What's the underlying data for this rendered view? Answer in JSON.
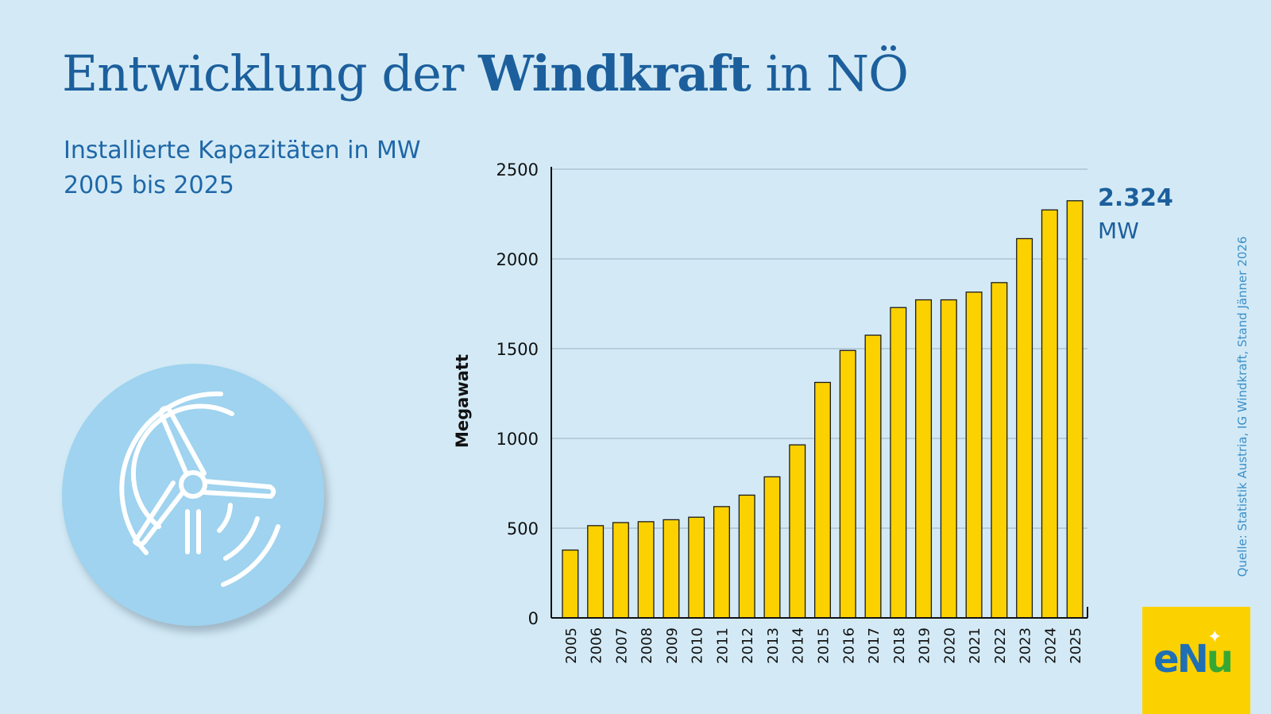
{
  "header": {
    "title_part1": "Entwicklung der ",
    "title_bold": "Windkraft",
    "title_part2": " in NÖ",
    "subtitle_line1": "Installierte Kapazitäten in MW",
    "subtitle_line2": "2005 bis 2025"
  },
  "source": "Quelle: Statistik Austria, IG Windkraft, Stand Jänner 2026",
  "logo": {
    "e": "e",
    "n": "N",
    "u": "u"
  },
  "icon": "wind-turbine-icon",
  "colors": {
    "background": "#d3eaf6",
    "bar": "#fcd100",
    "bar_outline": "#1a1a1a",
    "title": "#1c5f9c",
    "highlight": "#1c5f9c"
  },
  "chart_data": {
    "type": "bar",
    "categories": [
      "2005",
      "2006",
      "2007",
      "2008",
      "2009",
      "2010",
      "2011",
      "2012",
      "2013",
      "2014",
      "2015",
      "2016",
      "2017",
      "2018",
      "2019",
      "2020",
      "2021",
      "2022",
      "2023",
      "2024",
      "2025"
    ],
    "values": [
      378,
      514,
      531,
      536,
      547,
      561,
      620,
      684,
      786,
      964,
      1312,
      1490,
      1575,
      1729,
      1772,
      1772,
      1815,
      1868,
      2113,
      2273,
      2324
    ],
    "ylabel": "Megawatt",
    "xlabel": "",
    "ylim": [
      0,
      2500
    ],
    "yticks": [
      0,
      500,
      1000,
      1500,
      2000,
      2500
    ],
    "grid": true,
    "annotation": {
      "value": "2.324",
      "unit": "MW"
    }
  }
}
